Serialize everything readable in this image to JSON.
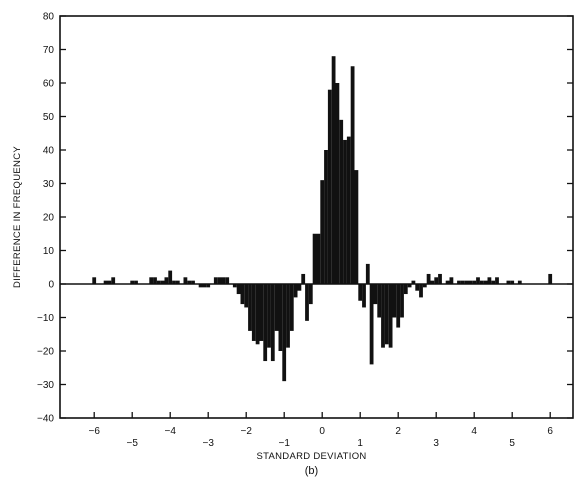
{
  "chart_data": {
    "type": "bar",
    "title": "",
    "xlabel": "STANDARD DEVIATION",
    "ylabel": "DIFFERENCE IN FREQUENCY",
    "caption": "(b)",
    "xlim": [
      -6.9,
      6.6
    ],
    "ylim": [
      -40,
      80
    ],
    "bar_width": 0.1,
    "x_ticks": [
      -6,
      -5,
      -4,
      -3,
      -2,
      -1,
      0,
      1,
      2,
      3,
      4,
      5,
      6
    ],
    "x_tick_labels": [
      "−6",
      "−5",
      "−4",
      "−3",
      "−2",
      "−1",
      "0",
      "1",
      "2",
      "3",
      "4",
      "5",
      "6"
    ],
    "y_ticks": [
      -40,
      -30,
      -20,
      -10,
      0,
      10,
      20,
      30,
      40,
      50,
      60,
      70,
      80
    ],
    "y_tick_labels": [
      "−40",
      "−30",
      "−20",
      "−10",
      "0",
      "10",
      "20",
      "30",
      "40",
      "50",
      "60",
      "70",
      "80"
    ],
    "grid": false,
    "legend": "none",
    "bar_color": "#111111",
    "x": [
      -6.0,
      -5.7,
      -5.6,
      -5.5,
      -5.0,
      -4.9,
      -4.5,
      -4.4,
      -4.3,
      -4.2,
      -4.1,
      -4.0,
      -3.9,
      -3.8,
      -3.6,
      -3.5,
      -3.4,
      -3.3,
      -3.2,
      -3.1,
      -3.0,
      -2.9,
      -2.8,
      -2.7,
      -2.6,
      -2.5,
      -2.4,
      -2.3,
      -2.2,
      -2.1,
      -2.0,
      -1.9,
      -1.8,
      -1.7,
      -1.6,
      -1.5,
      -1.4,
      -1.3,
      -1.2,
      -1.1,
      -1.0,
      -0.9,
      -0.8,
      -0.7,
      -0.6,
      -0.5,
      -0.4,
      -0.3,
      -0.2,
      -0.1,
      0.0,
      0.1,
      0.2,
      0.3,
      0.4,
      0.5,
      0.6,
      0.7,
      0.8,
      0.9,
      1.0,
      1.1,
      1.2,
      1.3,
      1.4,
      1.5,
      1.6,
      1.7,
      1.8,
      1.9,
      2.0,
      2.1,
      2.2,
      2.3,
      2.4,
      2.5,
      2.6,
      2.7,
      2.8,
      2.9,
      3.0,
      3.1,
      3.3,
      3.4,
      3.6,
      3.7,
      3.8,
      3.9,
      4.0,
      4.1,
      4.2,
      4.3,
      4.4,
      4.5,
      4.6,
      4.9,
      5.0,
      5.2,
      6.0
    ],
    "values": [
      2,
      1,
      1,
      2,
      1,
      1,
      2,
      2,
      1,
      1,
      2,
      4,
      1,
      1,
      2,
      1,
      1,
      0,
      -1,
      -1,
      -1,
      0,
      2,
      2,
      2,
      2,
      0,
      -1,
      -3,
      -6,
      -7,
      -14,
      -17,
      -18,
      -17,
      -23,
      -19,
      -23,
      -14,
      -20,
      -29,
      -19,
      -14,
      -4,
      -2,
      3,
      -11,
      -6,
      15,
      15,
      31,
      40,
      58,
      68,
      60,
      49,
      43,
      44,
      65,
      34,
      -5,
      -7,
      6,
      -24,
      -6,
      -10,
      -19,
      -18,
      -19,
      -10,
      -13,
      -10,
      -3,
      -1,
      1,
      -2,
      -4,
      -1,
      3,
      1,
      2,
      3,
      1,
      2,
      1,
      1,
      1,
      1,
      1,
      2,
      1,
      1,
      2,
      1,
      2,
      1,
      1,
      1,
      3
    ]
  }
}
